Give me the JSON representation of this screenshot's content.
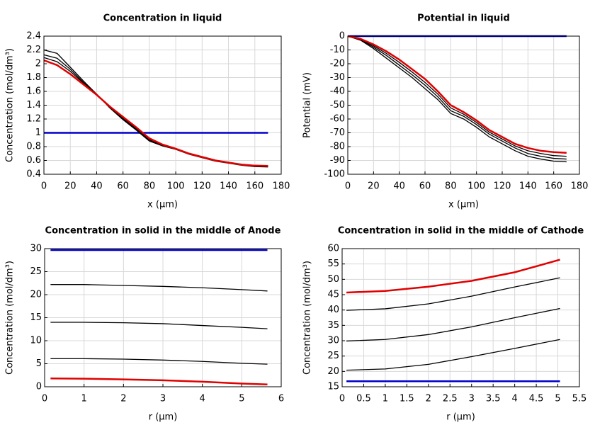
{
  "chart_data": [
    {
      "type": "line",
      "title": "Concentration in liquid",
      "x_label": "x (µm)",
      "y_label": "Concentration (mol/dm³)",
      "xlim": [
        0,
        180
      ],
      "xticks": [
        0,
        20,
        40,
        60,
        80,
        100,
        120,
        140,
        160,
        180
      ],
      "ylim": [
        0.4,
        2.4
      ],
      "yticks": [
        0.4,
        0.6,
        0.8,
        1,
        1.2,
        1.4,
        1.6,
        1.8,
        2,
        2.2,
        2.4
      ],
      "grid": true,
      "x": [
        0,
        10,
        20,
        30,
        40,
        50,
        60,
        70,
        80,
        90,
        100,
        110,
        120,
        130,
        140,
        150,
        160,
        170
      ],
      "series": [
        {
          "color": "#0000cc",
          "line_width": 2.5,
          "values": [
            1,
            1,
            1,
            1,
            1,
            1,
            1,
            1,
            1,
            1,
            1,
            1,
            1,
            1,
            1,
            1,
            1,
            1
          ]
        },
        {
          "color": "#000000",
          "line_width": 1.3,
          "values": [
            2.2,
            2.15,
            1.95,
            1.75,
            1.56,
            1.36,
            1.19,
            1.04,
            0.88,
            0.81,
            0.76,
            0.69,
            0.64,
            0.59,
            0.56,
            0.53,
            0.51,
            0.505
          ]
        },
        {
          "color": "#000000",
          "line_width": 1.3,
          "values": [
            2.13,
            2.08,
            1.92,
            1.73,
            1.56,
            1.37,
            1.2,
            1.05,
            0.89,
            0.82,
            0.765,
            0.695,
            0.645,
            0.595,
            0.565,
            0.535,
            0.515,
            0.51
          ]
        },
        {
          "color": "#000000",
          "line_width": 1.3,
          "values": [
            2.09,
            2.03,
            1.89,
            1.72,
            1.55,
            1.37,
            1.21,
            1.06,
            0.9,
            0.825,
            0.77,
            0.7,
            0.65,
            0.6,
            0.57,
            0.54,
            0.52,
            0.515
          ]
        },
        {
          "color": "#e00000",
          "line_width": 2.5,
          "values": [
            2.05,
            1.98,
            1.85,
            1.7,
            1.55,
            1.38,
            1.23,
            1.08,
            0.92,
            0.83,
            0.77,
            0.7,
            0.65,
            0.6,
            0.57,
            0.54,
            0.525,
            0.52
          ]
        }
      ]
    },
    {
      "type": "line",
      "title": "Potential in liquid",
      "x_label": "x (µm)",
      "y_label": "Potential (mV)",
      "xlim": [
        0,
        180
      ],
      "xticks": [
        0,
        20,
        40,
        60,
        80,
        100,
        120,
        140,
        160,
        180
      ],
      "ylim": [
        -100,
        0
      ],
      "yticks": [
        -100,
        -90,
        -80,
        -70,
        -60,
        -50,
        -40,
        -30,
        -20,
        -10,
        0
      ],
      "grid": true,
      "x": [
        0,
        10,
        20,
        30,
        40,
        50,
        60,
        70,
        80,
        90,
        100,
        110,
        120,
        130,
        140,
        150,
        160,
        170
      ],
      "series": [
        {
          "color": "#0000cc",
          "line_width": 2.5,
          "values": [
            0,
            0,
            0,
            0,
            0,
            0,
            0,
            0,
            0,
            0,
            0,
            0,
            0,
            0,
            0,
            0,
            0,
            0
          ]
        },
        {
          "color": "#000000",
          "line_width": 1.3,
          "values": [
            0,
            -3,
            -9,
            -16,
            -23,
            -30,
            -38,
            -46,
            -56,
            -60,
            -66,
            -73,
            -78,
            -83,
            -87,
            -89,
            -90.5,
            -91
          ]
        },
        {
          "color": "#000000",
          "line_width": 1.3,
          "values": [
            0,
            -2.5,
            -8,
            -14,
            -21,
            -28,
            -35.5,
            -44,
            -54,
            -58,
            -64,
            -71,
            -76,
            -81,
            -85,
            -87,
            -88.5,
            -89
          ]
        },
        {
          "color": "#000000",
          "line_width": 1.3,
          "values": [
            0,
            -2.2,
            -7,
            -12.5,
            -19,
            -26,
            -33.5,
            -42,
            -52,
            -56.5,
            -62.5,
            -69.5,
            -74.5,
            -79.5,
            -83,
            -85,
            -86.5,
            -87
          ]
        },
        {
          "color": "#e00000",
          "line_width": 2.5,
          "values": [
            0,
            -2,
            -6,
            -11,
            -17,
            -24,
            -31,
            -40,
            -50,
            -55,
            -61,
            -68,
            -73,
            -78,
            -81,
            -83,
            -84,
            -84.5
          ]
        }
      ]
    },
    {
      "type": "line",
      "title": "Concentration in solid in the middle of Anode",
      "x_label": "r (µm)",
      "y_label": "Concentration (mol/dm³)",
      "xlim": [
        0,
        6
      ],
      "xticks": [
        0,
        1,
        2,
        3,
        4,
        5,
        6
      ],
      "ylim": [
        0,
        30
      ],
      "yticks": [
        0,
        5,
        10,
        15,
        20,
        25,
        30
      ],
      "grid": true,
      "x": [
        0.15,
        1,
        2,
        3,
        4,
        5,
        5.65
      ],
      "series": [
        {
          "color": "#0000cc",
          "line_width": 2.5,
          "values": [
            29.7,
            29.7,
            29.7,
            29.7,
            29.7,
            29.7,
            29.7
          ]
        },
        {
          "color": "#000000",
          "line_width": 1.3,
          "values": [
            22.2,
            22.2,
            22,
            21.8,
            21.5,
            21.1,
            20.8
          ]
        },
        {
          "color": "#000000",
          "line_width": 1.3,
          "values": [
            14,
            14,
            13.9,
            13.7,
            13.3,
            12.9,
            12.6
          ]
        },
        {
          "color": "#000000",
          "line_width": 1.3,
          "values": [
            6.1,
            6.1,
            6,
            5.8,
            5.5,
            5.1,
            4.9
          ]
        },
        {
          "color": "#e00000",
          "line_width": 2.5,
          "values": [
            1.8,
            1.75,
            1.6,
            1.4,
            1.1,
            0.7,
            0.5
          ]
        }
      ]
    },
    {
      "type": "line",
      "title": "Concentration in solid in the middle of Cathode",
      "x_label": "r (µm)",
      "y_label": "Concentration (mol/dm³)",
      "xlim": [
        0,
        5.5
      ],
      "xticks": [
        0,
        0.5,
        1,
        1.5,
        2,
        2.5,
        3,
        3.5,
        4,
        4.5,
        5,
        5.5
      ],
      "ylim": [
        15,
        60
      ],
      "yticks": [
        15,
        20,
        25,
        30,
        35,
        40,
        45,
        50,
        55,
        60
      ],
      "grid": true,
      "x": [
        0.1,
        1,
        2,
        3,
        4,
        5.05
      ],
      "series": [
        {
          "color": "#0000cc",
          "line_width": 2.5,
          "values": [
            16.8,
            16.8,
            16.8,
            16.8,
            16.8,
            16.8
          ]
        },
        {
          "color": "#000000",
          "line_width": 1.3,
          "values": [
            20.4,
            20.8,
            22.3,
            24.8,
            27.5,
            30.4
          ]
        },
        {
          "color": "#000000",
          "line_width": 1.3,
          "values": [
            29.9,
            30.4,
            32,
            34.5,
            37.5,
            40.5
          ]
        },
        {
          "color": "#000000",
          "line_width": 1.3,
          "values": [
            39.9,
            40.4,
            42,
            44.5,
            47.5,
            50.5
          ]
        },
        {
          "color": "#e00000",
          "line_width": 2.5,
          "values": [
            45.7,
            46.2,
            47.6,
            49.5,
            52.3,
            56.4
          ]
        }
      ]
    }
  ]
}
